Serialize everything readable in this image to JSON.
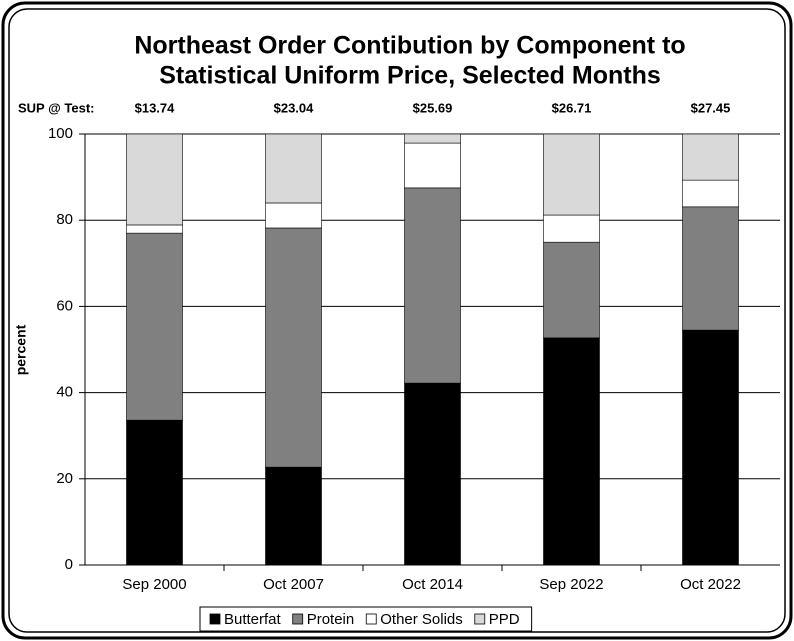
{
  "chart_data": {
    "type": "stacked_bar",
    "title": [
      "Northeast Order Contibution by Component to",
      "Statistical Uniform Price, Selected Months"
    ],
    "sup_label": "SUP @ Test:",
    "sup_values": [
      "$13.74",
      "$23.04",
      "$25.69",
      "$26.71",
      "$27.45"
    ],
    "y_label": "percent",
    "categories": [
      "Sep 2000",
      "Oct 2007",
      "Oct 2014",
      "Sep 2022",
      "Oct 2022"
    ],
    "series": [
      {
        "name": "Butterfat",
        "color": "#000000",
        "values": [
          33.6,
          22.7,
          42.2,
          52.7,
          54.5
        ]
      },
      {
        "name": "Protein",
        "color": "#808080",
        "values": [
          43.4,
          55.5,
          45.3,
          22.2,
          28.6
        ]
      },
      {
        "name": "Other Solids",
        "color": "#ffffff",
        "values": [
          1.9,
          5.8,
          10.4,
          6.3,
          6.2
        ]
      },
      {
        "name": "PPD",
        "color": "#d9d9d9",
        "values": [
          21.1,
          16.0,
          2.1,
          18.8,
          10.7
        ]
      }
    ],
    "ylim": [
      0,
      100
    ],
    "yticks": [
      0,
      20,
      40,
      60,
      80,
      100
    ],
    "grid": true
  }
}
